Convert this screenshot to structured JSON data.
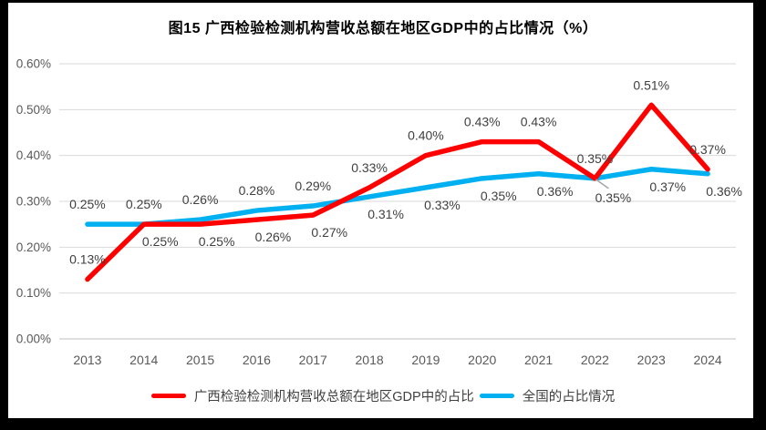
{
  "title": "图15 广西检验检测机构营收总额在地区GDP中的占比情况（%）",
  "frame": {
    "border_color": "#000000",
    "background": "#ffffff"
  },
  "axis_style": {
    "tick_color": "#595959",
    "grid_color": "#d9d9d9",
    "axis_line_color": "#bfbfbf",
    "data_label_color": "#404040",
    "leader_line_color": "#a6a6a6"
  },
  "chart_data": {
    "type": "line",
    "unit": "%",
    "categories": [
      "2013",
      "2014",
      "2015",
      "2016",
      "2017",
      "2018",
      "2019",
      "2020",
      "2021",
      "2022",
      "2023",
      "2024"
    ],
    "series": [
      {
        "name": "广西检验检测机构营收总额在地区GDP中的占比",
        "color": "#ff0000",
        "values": [
          0.13,
          0.25,
          0.25,
          0.26,
          0.27,
          0.33,
          0.4,
          0.43,
          0.43,
          0.35,
          0.51,
          0.37
        ],
        "labels": [
          "0.13%",
          "0.25%",
          "0.25%",
          "0.26%",
          "0.27%",
          "0.33%",
          "0.40%",
          "0.43%",
          "0.43%",
          "0.35%",
          "0.51%",
          "0.37%"
        ],
        "label_sides": [
          "above",
          "below",
          "below",
          "below",
          "below",
          "above",
          "above",
          "above",
          "above",
          "above",
          "above",
          "above"
        ]
      },
      {
        "name": "全国的占比情况",
        "color": "#00b0f0",
        "values": [
          0.25,
          0.25,
          0.26,
          0.28,
          0.29,
          0.31,
          0.33,
          0.35,
          0.36,
          0.35,
          0.37,
          0.36
        ],
        "labels": [
          "0.25%",
          "0.25%",
          "0.26%",
          "0.28%",
          "0.29%",
          "0.31%",
          "0.33%",
          "0.35%",
          "0.36%",
          "0.35%",
          "0.37%",
          "0.36%"
        ],
        "label_sides": [
          "above",
          "above",
          "above",
          "above",
          "above",
          "below",
          "below",
          "below",
          "below",
          "below-leader",
          "below",
          "below"
        ]
      }
    ],
    "ytick_labels": [
      "0.00%",
      "0.10%",
      "0.20%",
      "0.30%",
      "0.40%",
      "0.50%",
      "0.60%"
    ],
    "ytick_step": 0.1,
    "ylim": [
      0,
      0.6
    ],
    "grid": true,
    "legend_position": "bottom",
    "leader_annotation": {
      "series": 1,
      "index": 9
    }
  }
}
